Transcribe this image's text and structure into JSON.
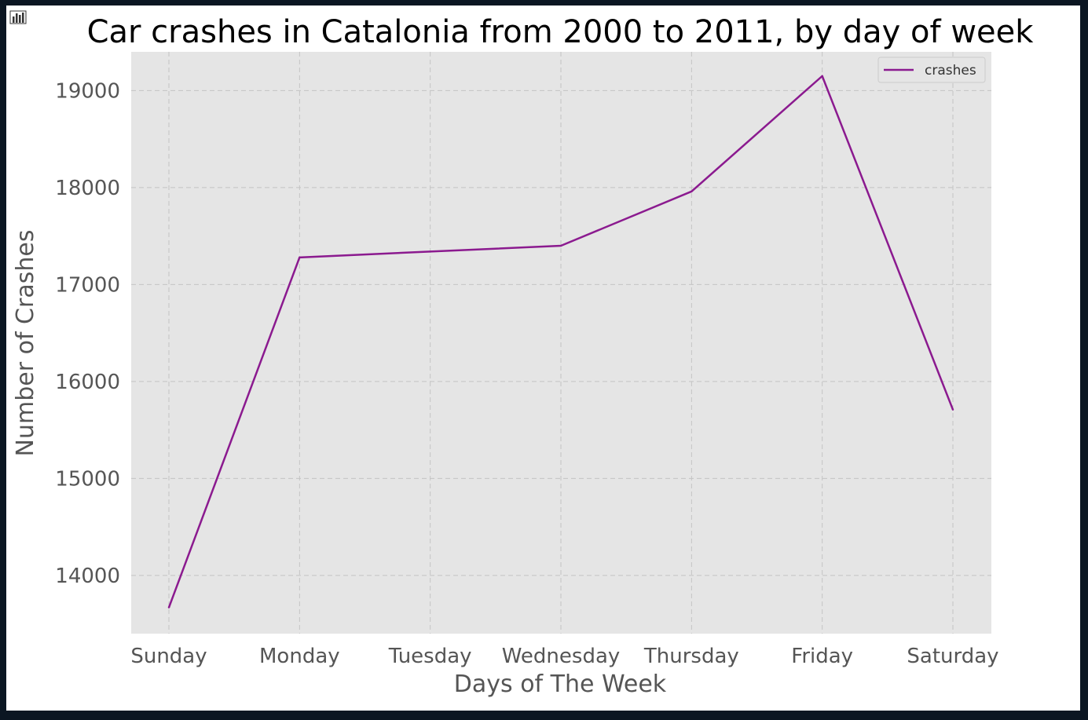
{
  "colors": {
    "line": "#8b1a8f",
    "plot_bg": "#e5e5e5",
    "frame_bg": "#0b1622"
  },
  "icons": {
    "toolbar": "bar-chart-icon"
  },
  "chart_data": {
    "type": "line",
    "title": "Car crashes in Catalonia from 2000 to 2011, by day of week",
    "xlabel": "Days of The Week",
    "ylabel": "Number of Crashes",
    "categories": [
      "Sunday",
      "Monday",
      "Tuesday",
      "Wednesday",
      "Thursday",
      "Friday",
      "Saturday"
    ],
    "series": [
      {
        "name": "crashes",
        "values": [
          13670,
          17280,
          17340,
          17400,
          17960,
          19150,
          15710
        ]
      }
    ],
    "ylim": [
      13400,
      19400
    ],
    "yticks": [
      "14000",
      "15000",
      "16000",
      "17000",
      "18000",
      "19000"
    ],
    "grid": true,
    "legend": "top-right"
  }
}
